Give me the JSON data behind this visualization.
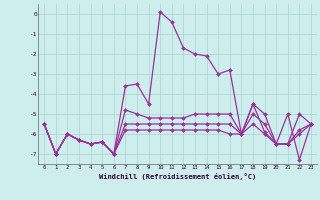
{
  "xlabel": "Windchill (Refroidissement éolien,°C)",
  "background_color": "#ceeeed",
  "grid_color": "#aad4d3",
  "line_color": "#993399",
  "hours": [
    0,
    1,
    2,
    3,
    4,
    5,
    6,
    7,
    8,
    9,
    10,
    11,
    12,
    13,
    14,
    15,
    16,
    17,
    18,
    19,
    20,
    21,
    22,
    23
  ],
  "s1": [
    -5.5,
    -7.0,
    -6.0,
    -6.3,
    -6.5,
    -6.4,
    -7.0,
    -3.6,
    -3.5,
    -4.5,
    0.1,
    -0.4,
    -1.7,
    -2.0,
    -2.1,
    -3.0,
    -2.8,
    -6.0,
    -4.5,
    -5.9,
    -6.5,
    -5.0,
    -7.3,
    -5.5
  ],
  "s2": [
    -5.5,
    -7.0,
    -6.0,
    -6.3,
    -6.5,
    -6.4,
    -7.0,
    -4.8,
    -5.0,
    -5.2,
    -5.2,
    -5.2,
    -5.2,
    -5.0,
    -5.0,
    -5.0,
    -5.0,
    -6.0,
    -4.5,
    -5.0,
    -6.5,
    -6.5,
    -5.0,
    -5.5
  ],
  "s3": [
    -5.5,
    -7.0,
    -6.0,
    -6.3,
    -6.5,
    -6.4,
    -7.0,
    -5.5,
    -5.5,
    -5.5,
    -5.5,
    -5.5,
    -5.5,
    -5.5,
    -5.5,
    -5.5,
    -5.5,
    -6.0,
    -5.0,
    -5.5,
    -6.5,
    -6.5,
    -5.8,
    -5.5
  ],
  "s4": [
    -5.5,
    -7.0,
    -6.0,
    -6.3,
    -6.5,
    -6.4,
    -7.0,
    -5.8,
    -5.8,
    -5.8,
    -5.8,
    -5.8,
    -5.8,
    -5.8,
    -5.8,
    -5.8,
    -6.0,
    -6.0,
    -5.5,
    -6.0,
    -6.5,
    -6.5,
    -6.0,
    -5.5
  ],
  "ylim": [
    -7.5,
    0.5
  ],
  "yticks": [
    0,
    -1,
    -2,
    -3,
    -4,
    -5,
    -6,
    -7
  ],
  "xticks": [
    0,
    1,
    2,
    3,
    4,
    5,
    6,
    7,
    8,
    9,
    10,
    11,
    12,
    13,
    14,
    15,
    16,
    17,
    18,
    19,
    20,
    21,
    22,
    23
  ]
}
